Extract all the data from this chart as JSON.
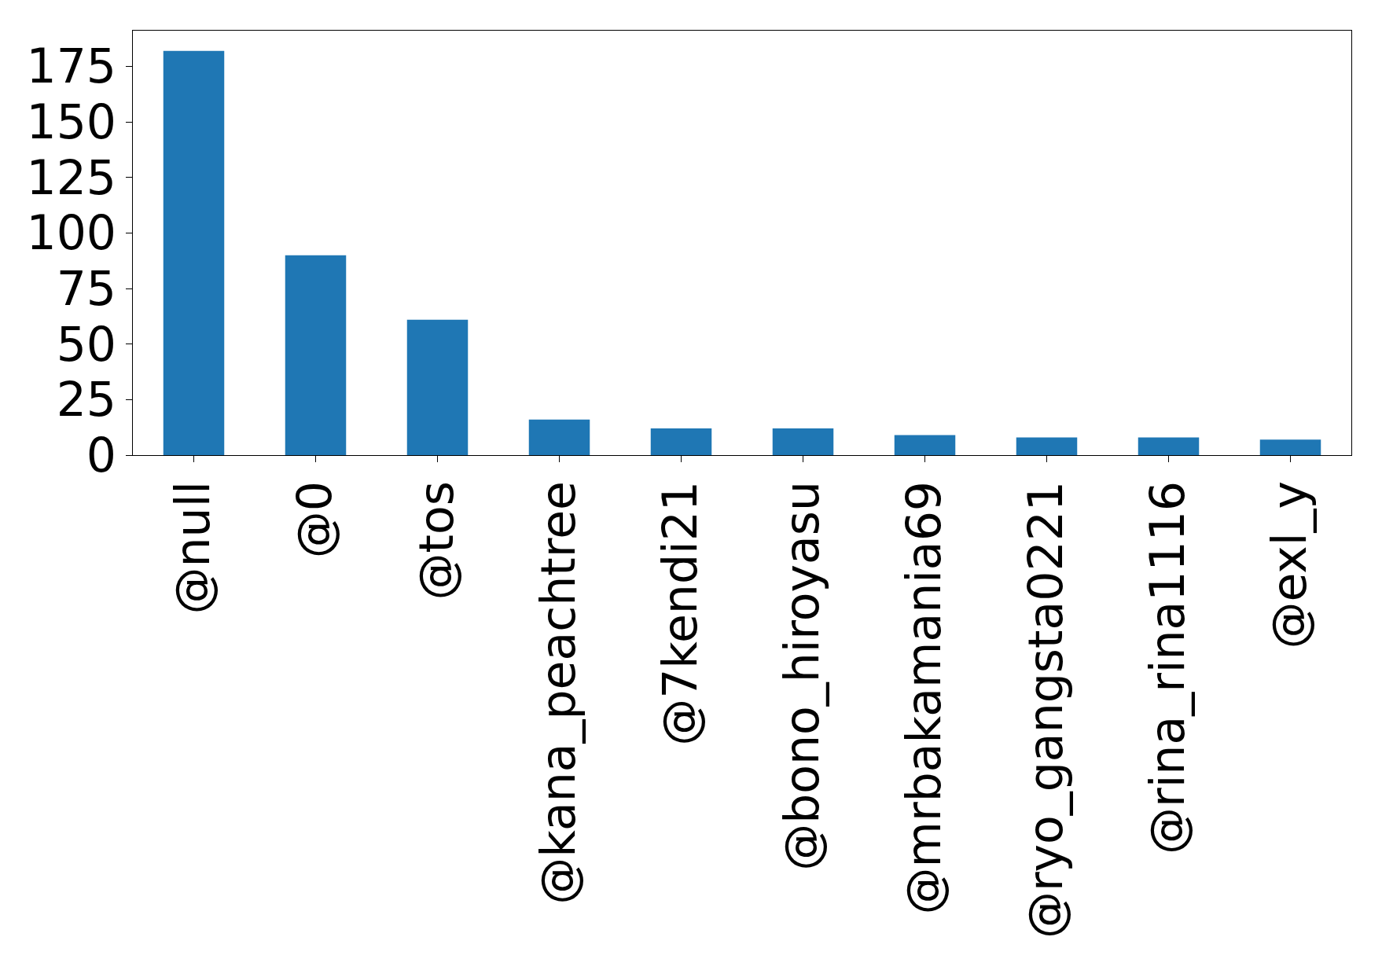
{
  "chart_data": {
    "type": "bar",
    "categories": [
      "@null",
      "@0",
      "@tos",
      "@kana_peachtree",
      "@7kendi21",
      "@bono_hiroyasu",
      "@mrbakamania69",
      "@ryo_gangsta0221",
      "@rina_rina1116",
      "@exl_y"
    ],
    "values": [
      182,
      90,
      61,
      16,
      12,
      12,
      9,
      8,
      8,
      7
    ],
    "color": "#1f77b4",
    "ylim": [
      0,
      191.1
    ],
    "yticks": [
      0,
      25,
      50,
      75,
      100,
      125,
      150,
      175
    ]
  }
}
